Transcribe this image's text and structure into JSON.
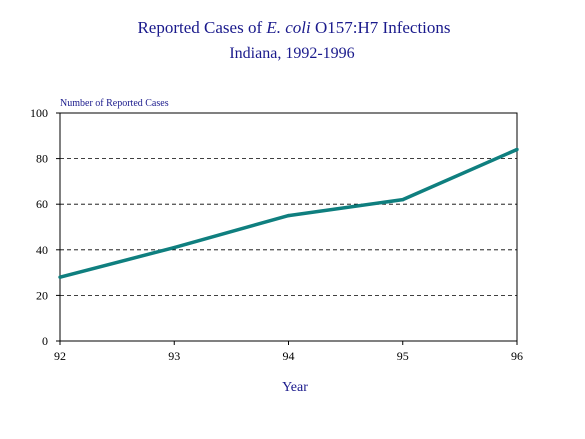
{
  "chart_data": {
    "type": "line",
    "title": {
      "prefix": "Reported Cases of ",
      "italic": "E. coli",
      "suffix": " O157:H7 Infections"
    },
    "subtitle": "Indiana, 1992-1996",
    "ylabel": "Number of Reported Cases",
    "xlabel": "Year",
    "categories": [
      "92",
      "93",
      "94",
      "95",
      "96"
    ],
    "yticks": [
      0,
      20,
      40,
      60,
      80,
      100
    ],
    "ylim": [
      0,
      100
    ],
    "grid": "horizontal dashed",
    "series": [
      {
        "values": [
          28,
          41,
          55,
          62,
          84
        ],
        "color": "#0f7f7f"
      }
    ],
    "colors": {
      "title": "#1a1a8c",
      "line": "#0f7f7f",
      "grid": "#000000"
    }
  }
}
